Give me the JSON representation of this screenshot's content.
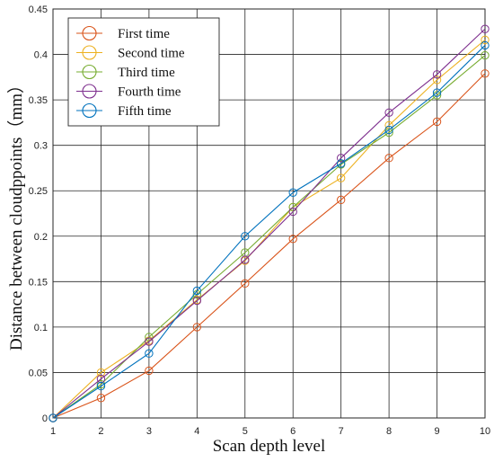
{
  "chart_data": {
    "type": "line",
    "title": "",
    "xlabel": "Scan depth level",
    "ylabel": "Distance between cloudppoints（mm）",
    "x": [
      1,
      2,
      3,
      4,
      5,
      6,
      7,
      8,
      9,
      10
    ],
    "xlim": [
      1,
      10
    ],
    "ylim": [
      0,
      0.45
    ],
    "xticks": [
      "1",
      "2",
      "3",
      "4",
      "5",
      "6",
      "7",
      "8",
      "9",
      "10"
    ],
    "yticks": [
      "0",
      "0.05",
      "0.1",
      "0.15",
      "0.2",
      "0.25",
      "0.3",
      "0.35",
      "0.4",
      "0.45"
    ],
    "grid": true,
    "legend_position": "top-left",
    "marker": "circle",
    "series": [
      {
        "name": "First time",
        "color": "#D95319",
        "values": [
          0,
          0.022,
          0.052,
          0.1,
          0.148,
          0.197,
          0.24,
          0.286,
          0.326,
          0.379
        ]
      },
      {
        "name": "Second time",
        "color": "#EDB120",
        "values": [
          0,
          0.05,
          0.085,
          0.13,
          0.173,
          0.232,
          0.264,
          0.322,
          0.372,
          0.416
        ]
      },
      {
        "name": "Third time",
        "color": "#77AC30",
        "values": [
          0,
          0.037,
          0.089,
          0.136,
          0.182,
          0.232,
          0.279,
          0.314,
          0.355,
          0.399
        ]
      },
      {
        "name": "Fourth time",
        "color": "#7E2F8E",
        "values": [
          0,
          0.043,
          0.084,
          0.129,
          0.174,
          0.227,
          0.286,
          0.336,
          0.378,
          0.428
        ]
      },
      {
        "name": "Fifth time",
        "color": "#0072BD",
        "values": [
          0,
          0.035,
          0.071,
          0.14,
          0.2,
          0.248,
          0.28,
          0.317,
          0.358,
          0.41
        ]
      }
    ]
  }
}
